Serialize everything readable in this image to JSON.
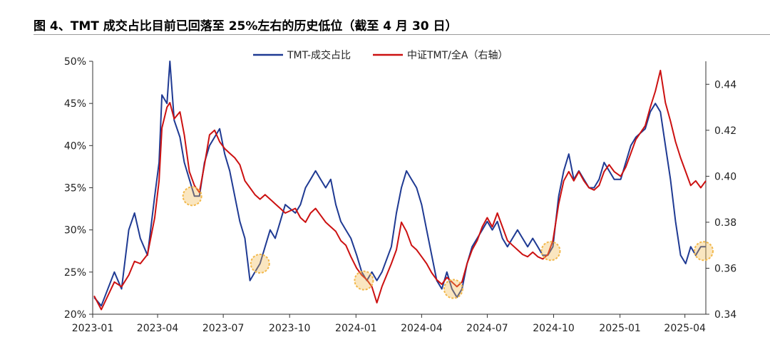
{
  "header": {
    "title": "图 4、TMT 成交占比目前已回落至 25%左右的历史低位（截至 4 月 30 日）"
  },
  "chart_data": {
    "type": "line",
    "title": "图 4、TMT 成交占比目前已回落至 25%左右的历史低位（截至 4 月 30 日）",
    "legend_position": "top-center",
    "grid": false,
    "x_tick_labels": [
      "2023-01",
      "2023-04",
      "2023-07",
      "2023-10",
      "2024-01",
      "2024-04",
      "2024-07",
      "2024-10",
      "2025-01",
      "2025-04"
    ],
    "y_left": {
      "ylim": [
        0.2,
        0.5
      ],
      "tick_labels": [
        "20%",
        "25%",
        "30%",
        "35%",
        "40%",
        "45%",
        "50%"
      ]
    },
    "y_right": {
      "ylim": [
        0.34,
        0.45
      ],
      "tick_labels": [
        "0.34",
        "0.36",
        "0.38",
        "0.40",
        "0.42",
        "0.44"
      ]
    },
    "series": [
      {
        "name": "TMT-成交占比",
        "axis": "left",
        "color": "#1f3a93",
        "points": [
          [
            "2023-01-03",
            0.22
          ],
          [
            "2023-01-13",
            0.21
          ],
          [
            "2023-01-31",
            0.25
          ],
          [
            "2023-02-10",
            0.23
          ],
          [
            "2023-02-20",
            0.3
          ],
          [
            "2023-02-28",
            0.32
          ],
          [
            "2023-03-08",
            0.29
          ],
          [
            "2023-03-18",
            0.27
          ],
          [
            "2023-03-28",
            0.34
          ],
          [
            "2023-04-03",
            0.38
          ],
          [
            "2023-04-07",
            0.46
          ],
          [
            "2023-04-14",
            0.45
          ],
          [
            "2023-04-18",
            0.5
          ],
          [
            "2023-04-24",
            0.43
          ],
          [
            "2023-05-02",
            0.41
          ],
          [
            "2023-05-08",
            0.38
          ],
          [
            "2023-05-15",
            0.36
          ],
          [
            "2023-05-22",
            0.34
          ],
          [
            "2023-05-29",
            0.34
          ],
          [
            "2023-06-05",
            0.38
          ],
          [
            "2023-06-12",
            0.4
          ],
          [
            "2023-06-19",
            0.41
          ],
          [
            "2023-06-26",
            0.42
          ],
          [
            "2023-07-03",
            0.39
          ],
          [
            "2023-07-10",
            0.37
          ],
          [
            "2023-07-17",
            0.34
          ],
          [
            "2023-07-24",
            0.31
          ],
          [
            "2023-07-31",
            0.29
          ],
          [
            "2023-08-07",
            0.24
          ],
          [
            "2023-08-14",
            0.25
          ],
          [
            "2023-08-21",
            0.26
          ],
          [
            "2023-08-28",
            0.28
          ],
          [
            "2023-09-04",
            0.3
          ],
          [
            "2023-09-11",
            0.29
          ],
          [
            "2023-09-18",
            0.31
          ],
          [
            "2023-09-25",
            0.33
          ],
          [
            "2023-10-09",
            0.32
          ],
          [
            "2023-10-16",
            0.33
          ],
          [
            "2023-10-23",
            0.35
          ],
          [
            "2023-10-30",
            0.36
          ],
          [
            "2023-11-06",
            0.37
          ],
          [
            "2023-11-13",
            0.36
          ],
          [
            "2023-11-20",
            0.35
          ],
          [
            "2023-11-27",
            0.36
          ],
          [
            "2023-12-04",
            0.33
          ],
          [
            "2023-12-11",
            0.31
          ],
          [
            "2023-12-18",
            0.3
          ],
          [
            "2023-12-25",
            0.29
          ],
          [
            "2024-01-02",
            0.27
          ],
          [
            "2024-01-09",
            0.25
          ],
          [
            "2024-01-16",
            0.24
          ],
          [
            "2024-01-23",
            0.25
          ],
          [
            "2024-01-30",
            0.24
          ],
          [
            "2024-02-06",
            0.25
          ],
          [
            "2024-02-19",
            0.28
          ],
          [
            "2024-02-26",
            0.32
          ],
          [
            "2024-03-04",
            0.35
          ],
          [
            "2024-03-11",
            0.37
          ],
          [
            "2024-03-18",
            0.36
          ],
          [
            "2024-03-25",
            0.35
          ],
          [
            "2024-04-01",
            0.33
          ],
          [
            "2024-04-08",
            0.3
          ],
          [
            "2024-04-15",
            0.27
          ],
          [
            "2024-04-22",
            0.24
          ],
          [
            "2024-04-29",
            0.23
          ],
          [
            "2024-05-06",
            0.25
          ],
          [
            "2024-05-13",
            0.23
          ],
          [
            "2024-05-20",
            0.22
          ],
          [
            "2024-05-27",
            0.23
          ],
          [
            "2024-06-03",
            0.26
          ],
          [
            "2024-06-10",
            0.28
          ],
          [
            "2024-06-17",
            0.29
          ],
          [
            "2024-06-24",
            0.3
          ],
          [
            "2024-07-01",
            0.31
          ],
          [
            "2024-07-08",
            0.3
          ],
          [
            "2024-07-15",
            0.31
          ],
          [
            "2024-07-22",
            0.29
          ],
          [
            "2024-07-29",
            0.28
          ],
          [
            "2024-08-05",
            0.29
          ],
          [
            "2024-08-12",
            0.3
          ],
          [
            "2024-08-19",
            0.29
          ],
          [
            "2024-08-26",
            0.28
          ],
          [
            "2024-09-02",
            0.29
          ],
          [
            "2024-09-09",
            0.28
          ],
          [
            "2024-09-16",
            0.27
          ],
          [
            "2024-09-23",
            0.27
          ],
          [
            "2024-09-30",
            0.28
          ],
          [
            "2024-10-08",
            0.34
          ],
          [
            "2024-10-15",
            0.37
          ],
          [
            "2024-10-22",
            0.39
          ],
          [
            "2024-10-29",
            0.36
          ],
          [
            "2024-11-05",
            0.37
          ],
          [
            "2024-11-12",
            0.36
          ],
          [
            "2024-11-19",
            0.35
          ],
          [
            "2024-11-26",
            0.35
          ],
          [
            "2024-12-03",
            0.36
          ],
          [
            "2024-12-10",
            0.38
          ],
          [
            "2024-12-17",
            0.37
          ],
          [
            "2024-12-24",
            0.36
          ],
          [
            "2025-01-02",
            0.36
          ],
          [
            "2025-01-09",
            0.38
          ],
          [
            "2025-01-16",
            0.4
          ],
          [
            "2025-01-23",
            0.41
          ],
          [
            "2025-02-05",
            0.42
          ],
          [
            "2025-02-12",
            0.44
          ],
          [
            "2025-02-19",
            0.45
          ],
          [
            "2025-02-26",
            0.44
          ],
          [
            "2025-03-05",
            0.4
          ],
          [
            "2025-03-12",
            0.36
          ],
          [
            "2025-03-19",
            0.31
          ],
          [
            "2025-03-26",
            0.27
          ],
          [
            "2025-04-02",
            0.26
          ],
          [
            "2025-04-09",
            0.28
          ],
          [
            "2025-04-16",
            0.27
          ],
          [
            "2025-04-23",
            0.28
          ],
          [
            "2025-04-30",
            0.28
          ]
        ]
      },
      {
        "name": "中证TMT/全A（右轴）",
        "axis": "right",
        "color": "#cc1111",
        "points": [
          [
            "2023-01-03",
            0.348
          ],
          [
            "2023-01-13",
            0.342
          ],
          [
            "2023-01-31",
            0.354
          ],
          [
            "2023-02-10",
            0.352
          ],
          [
            "2023-02-20",
            0.357
          ],
          [
            "2023-02-28",
            0.363
          ],
          [
            "2023-03-08",
            0.362
          ],
          [
            "2023-03-18",
            0.366
          ],
          [
            "2023-03-28",
            0.382
          ],
          [
            "2023-04-03",
            0.398
          ],
          [
            "2023-04-07",
            0.421
          ],
          [
            "2023-04-14",
            0.43
          ],
          [
            "2023-04-18",
            0.432
          ],
          [
            "2023-04-24",
            0.425
          ],
          [
            "2023-05-02",
            0.428
          ],
          [
            "2023-05-08",
            0.418
          ],
          [
            "2023-05-15",
            0.402
          ],
          [
            "2023-05-22",
            0.396
          ],
          [
            "2023-05-29",
            0.393
          ],
          [
            "2023-06-05",
            0.405
          ],
          [
            "2023-06-12",
            0.418
          ],
          [
            "2023-06-19",
            0.42
          ],
          [
            "2023-06-26",
            0.415
          ],
          [
            "2023-07-03",
            0.412
          ],
          [
            "2023-07-10",
            0.41
          ],
          [
            "2023-07-17",
            0.408
          ],
          [
            "2023-07-24",
            0.405
          ],
          [
            "2023-07-31",
            0.398
          ],
          [
            "2023-08-07",
            0.395
          ],
          [
            "2023-08-14",
            0.392
          ],
          [
            "2023-08-21",
            0.39
          ],
          [
            "2023-08-28",
            0.392
          ],
          [
            "2023-09-04",
            0.39
          ],
          [
            "2023-09-11",
            0.388
          ],
          [
            "2023-09-18",
            0.386
          ],
          [
            "2023-09-25",
            0.384
          ],
          [
            "2023-10-09",
            0.386
          ],
          [
            "2023-10-16",
            0.382
          ],
          [
            "2023-10-23",
            0.38
          ],
          [
            "2023-10-30",
            0.384
          ],
          [
            "2023-11-06",
            0.386
          ],
          [
            "2023-11-13",
            0.383
          ],
          [
            "2023-11-20",
            0.38
          ],
          [
            "2023-11-27",
            0.378
          ],
          [
            "2023-12-04",
            0.376
          ],
          [
            "2023-12-11",
            0.372
          ],
          [
            "2023-12-18",
            0.37
          ],
          [
            "2023-12-25",
            0.365
          ],
          [
            "2024-01-02",
            0.36
          ],
          [
            "2024-01-09",
            0.357
          ],
          [
            "2024-01-16",
            0.355
          ],
          [
            "2024-01-23",
            0.352
          ],
          [
            "2024-01-30",
            0.345
          ],
          [
            "2024-02-06",
            0.352
          ],
          [
            "2024-02-19",
            0.362
          ],
          [
            "2024-02-26",
            0.368
          ],
          [
            "2024-03-04",
            0.38
          ],
          [
            "2024-03-11",
            0.376
          ],
          [
            "2024-03-18",
            0.37
          ],
          [
            "2024-03-25",
            0.368
          ],
          [
            "2024-04-01",
            0.365
          ],
          [
            "2024-04-08",
            0.362
          ],
          [
            "2024-04-15",
            0.358
          ],
          [
            "2024-04-22",
            0.355
          ],
          [
            "2024-04-29",
            0.353
          ],
          [
            "2024-05-06",
            0.356
          ],
          [
            "2024-05-13",
            0.354
          ],
          [
            "2024-05-20",
            0.352
          ],
          [
            "2024-05-27",
            0.354
          ],
          [
            "2024-06-03",
            0.362
          ],
          [
            "2024-06-10",
            0.368
          ],
          [
            "2024-06-17",
            0.372
          ],
          [
            "2024-06-24",
            0.378
          ],
          [
            "2024-07-01",
            0.382
          ],
          [
            "2024-07-08",
            0.378
          ],
          [
            "2024-07-15",
            0.384
          ],
          [
            "2024-07-22",
            0.378
          ],
          [
            "2024-07-29",
            0.372
          ],
          [
            "2024-08-05",
            0.37
          ],
          [
            "2024-08-12",
            0.368
          ],
          [
            "2024-08-19",
            0.366
          ],
          [
            "2024-08-26",
            0.365
          ],
          [
            "2024-09-02",
            0.367
          ],
          [
            "2024-09-09",
            0.365
          ],
          [
            "2024-09-16",
            0.364
          ],
          [
            "2024-09-23",
            0.366
          ],
          [
            "2024-09-30",
            0.372
          ],
          [
            "2024-10-08",
            0.388
          ],
          [
            "2024-10-15",
            0.398
          ],
          [
            "2024-10-22",
            0.402
          ],
          [
            "2024-10-29",
            0.398
          ],
          [
            "2024-11-05",
            0.402
          ],
          [
            "2024-11-12",
            0.398
          ],
          [
            "2024-11-19",
            0.395
          ],
          [
            "2024-11-26",
            0.394
          ],
          [
            "2024-12-03",
            0.396
          ],
          [
            "2024-12-10",
            0.402
          ],
          [
            "2024-12-17",
            0.405
          ],
          [
            "2024-12-24",
            0.402
          ],
          [
            "2025-01-02",
            0.4
          ],
          [
            "2025-01-09",
            0.404
          ],
          [
            "2025-01-16",
            0.41
          ],
          [
            "2025-01-23",
            0.416
          ],
          [
            "2025-02-05",
            0.422
          ],
          [
            "2025-02-12",
            0.43
          ],
          [
            "2025-02-19",
            0.437
          ],
          [
            "2025-02-26",
            0.446
          ],
          [
            "2025-03-05",
            0.432
          ],
          [
            "2025-03-12",
            0.424
          ],
          [
            "2025-03-19",
            0.415
          ],
          [
            "2025-03-26",
            0.408
          ],
          [
            "2025-04-02",
            0.402
          ],
          [
            "2025-04-09",
            0.396
          ],
          [
            "2025-04-16",
            0.398
          ],
          [
            "2025-04-23",
            0.395
          ],
          [
            "2025-04-30",
            0.398
          ]
        ]
      }
    ],
    "highlight_markers": [
      {
        "date": "2023-05-19",
        "value": 0.34,
        "axis": "left"
      },
      {
        "date": "2023-08-21",
        "value": 0.26,
        "axis": "left"
      },
      {
        "date": "2024-01-12",
        "value": 0.24,
        "axis": "left"
      },
      {
        "date": "2024-05-15",
        "value": 0.23,
        "axis": "left"
      },
      {
        "date": "2024-09-27",
        "value": 0.275,
        "axis": "left"
      },
      {
        "date": "2025-04-27",
        "value": 0.275,
        "axis": "left"
      }
    ],
    "highlight_color": "#f2b84b"
  }
}
